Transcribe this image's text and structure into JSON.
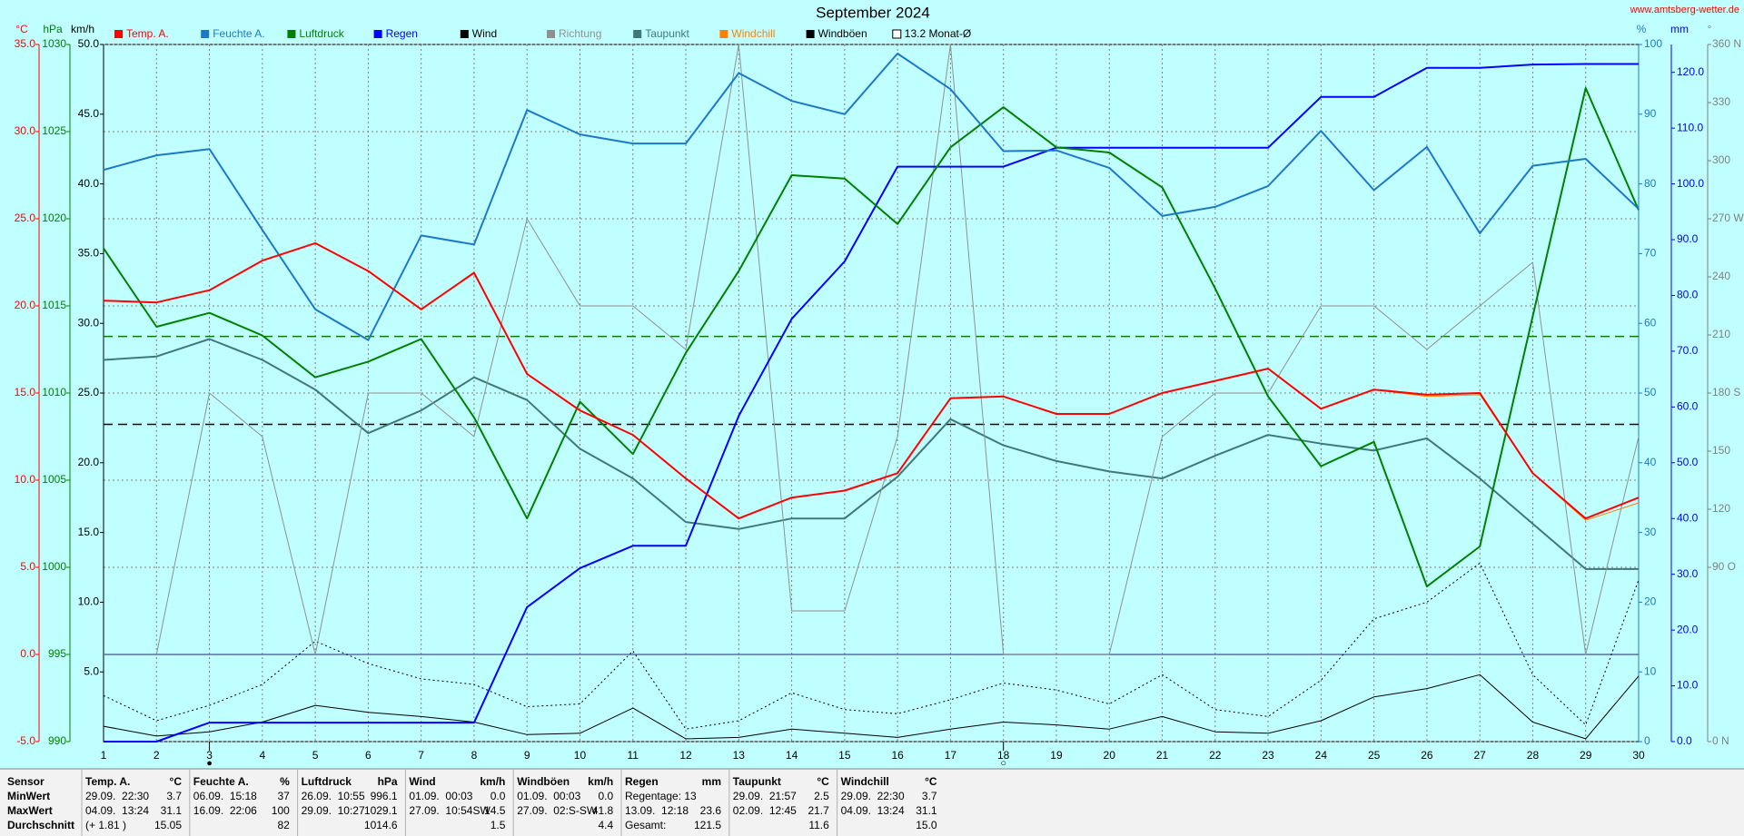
{
  "chart_data": {
    "type": "line",
    "title": "September 2024",
    "source": "www.amtsberg-wetter.de",
    "x": [
      1,
      2,
      3,
      4,
      5,
      6,
      7,
      8,
      9,
      10,
      11,
      12,
      13,
      14,
      15,
      16,
      17,
      18,
      19,
      20,
      21,
      22,
      23,
      24,
      25,
      26,
      27,
      28,
      29,
      30
    ],
    "xlim": [
      1,
      30
    ],
    "xticks": [
      1,
      2,
      3,
      4,
      5,
      6,
      7,
      8,
      9,
      10,
      11,
      12,
      13,
      14,
      15,
      16,
      17,
      18,
      19,
      20,
      21,
      22,
      23,
      24,
      25,
      26,
      27,
      28,
      29,
      30
    ],
    "grid": true,
    "zero_line": true,
    "axes": [
      {
        "unit": "°C",
        "color": "#ff0000",
        "lim": [
          -5,
          35
        ],
        "ticks": [
          {
            "value": -5,
            "label": "-5.0"
          },
          {
            "value": 0,
            "label": "0.0"
          },
          {
            "value": 5,
            "label": "5.0"
          },
          {
            "value": 10,
            "label": "10.0"
          },
          {
            "value": 15,
            "label": "15.0"
          },
          {
            "value": 20,
            "label": "20.0"
          },
          {
            "value": 25,
            "label": "25.0"
          },
          {
            "value": 30,
            "label": "30.0"
          },
          {
            "value": 35,
            "label": "35.0"
          }
        ]
      },
      {
        "unit": "hPa",
        "color": "#008000",
        "lim": [
          990,
          1030
        ],
        "ticks": [
          990,
          995,
          1000,
          1005,
          1010,
          1015,
          1020,
          1025,
          1030
        ]
      },
      {
        "unit": "km/h",
        "color": "#000000",
        "lim": [
          0,
          50
        ],
        "ticks": [
          {
            "value": 5,
            "label": "5.0"
          },
          {
            "value": 10,
            "label": "10.0"
          },
          {
            "value": 15,
            "label": "15.0"
          },
          {
            "value": 20,
            "label": "20.0"
          },
          {
            "value": 25,
            "label": "25.0"
          },
          {
            "value": 30,
            "label": "30.0"
          },
          {
            "value": 35,
            "label": "35.0"
          },
          {
            "value": 40,
            "label": "40.0"
          },
          {
            "value": 45,
            "label": "45.0"
          },
          {
            "value": 50,
            "label": "50.0"
          }
        ]
      },
      {
        "unit": "%",
        "color": "#1e78c8",
        "lim": [
          0,
          100
        ],
        "ticks": [
          0,
          10,
          20,
          30,
          40,
          50,
          60,
          70,
          80,
          90,
          100
        ]
      },
      {
        "unit": "mm",
        "color": "#0000ff",
        "lim": [
          0,
          125
        ],
        "ticks": [
          {
            "value": 0,
            "label": "0.0"
          },
          {
            "value": 10,
            "label": "10.0"
          },
          {
            "value": 20,
            "label": "20.0"
          },
          {
            "value": 30,
            "label": "30.0"
          },
          {
            "value": 40,
            "label": "40.0"
          },
          {
            "value": 50,
            "label": "50.0"
          },
          {
            "value": 60,
            "label": "60.0"
          },
          {
            "value": 70,
            "label": "70.0"
          },
          {
            "value": 80,
            "label": "80.0"
          },
          {
            "value": 90,
            "label": "90.0"
          },
          {
            "value": 100,
            "label": "100.0"
          },
          {
            "value": 110,
            "label": "110.0"
          },
          {
            "value": 120,
            "label": "120.0"
          }
        ]
      },
      {
        "unit": "°",
        "color": "#808080",
        "lim": [
          0,
          360
        ],
        "ticks": [
          {
            "value": 0,
            "label": "0 N"
          },
          {
            "value": 90,
            "label": "90 O"
          },
          120,
          150,
          {
            "value": 180,
            "label": "180 S"
          },
          210,
          240,
          {
            "value": 270,
            "label": "270 W"
          },
          300,
          330,
          {
            "value": 360,
            "label": "360 N"
          }
        ]
      }
    ],
    "series": [
      {
        "name": "Temp. A.",
        "color": "#ff0000",
        "axis": 0,
        "style": "thick",
        "values": [
          20.3,
          20.2,
          20.9,
          22.6,
          23.6,
          22.0,
          19.8,
          21.9,
          16.1,
          14.0,
          12.6,
          10.1,
          7.8,
          9.0,
          9.4,
          10.4,
          14.7,
          14.8,
          13.8,
          13.8,
          15.0,
          15.7,
          16.4,
          14.1,
          15.2,
          14.9,
          15.0,
          10.4,
          7.8,
          9.0
        ]
      },
      {
        "name": "Feuchte A.",
        "color": "#1e78c8",
        "axis": 3,
        "style": "thick",
        "values": [
          82.0,
          84.1,
          85.0,
          73.4,
          62.0,
          57.6,
          72.6,
          71.3,
          90.6,
          87.1,
          85.8,
          85.8,
          95.9,
          91.9,
          90.0,
          98.7,
          93.6,
          84.7,
          84.8,
          82.3,
          75.4,
          76.7,
          79.7,
          87.6,
          79.1,
          85.3,
          72.9,
          82.6,
          83.6,
          76.4
        ]
      },
      {
        "name": "Luftdruck",
        "color": "#008000",
        "axis": 1,
        "style": "thick",
        "values": [
          1018.3,
          1013.8,
          1014.6,
          1013.3,
          1010.9,
          1011.8,
          1013.1,
          1008.6,
          1002.8,
          1009.5,
          1006.5,
          1012.3,
          1017.0,
          1022.5,
          1022.3,
          1019.7,
          1024.1,
          1026.4,
          1024.1,
          1023.8,
          1021.8,
          1016.0,
          1009.8,
          1005.8,
          1007.2,
          998.9,
          1001.2,
          1014.4,
          1027.5,
          1020.5
        ]
      },
      {
        "name": "Regen",
        "color": "#0000ff",
        "axis": 4,
        "style": "thick",
        "values": [
          0,
          0,
          3.4,
          3.4,
          3.4,
          3.4,
          3.4,
          3.4,
          24.1,
          31.1,
          35.1,
          35.1,
          58.4,
          75.8,
          86.1,
          103.1,
          103.1,
          103.1,
          106.5,
          106.5,
          106.5,
          106.5,
          106.5,
          115.6,
          115.6,
          120.8,
          120.8,
          121.4,
          121.5,
          121.5
        ]
      },
      {
        "name": "Wind",
        "color": "#000000",
        "axis": 2,
        "style": "thin",
        "values": [
          1.1,
          0.4,
          0.7,
          1.4,
          2.6,
          2.1,
          1.8,
          1.4,
          0.5,
          0.6,
          2.4,
          0.2,
          0.3,
          0.9,
          0.6,
          0.3,
          0.9,
          1.4,
          1.2,
          0.9,
          1.8,
          0.7,
          0.6,
          1.5,
          3.2,
          3.8,
          4.8,
          1.4,
          0.2,
          4.7
        ]
      },
      {
        "name": "Richtung",
        "color": "#909090",
        "axis": 5,
        "style": "thin",
        "values": [
          null,
          45,
          180,
          157.5,
          45,
          180,
          180,
          157.5,
          270,
          225,
          225,
          202.5,
          360,
          67.5,
          67.5,
          157.5,
          360,
          45,
          45,
          45,
          157.5,
          180,
          180,
          225,
          225,
          202.5,
          225,
          247.5,
          45,
          157.5
        ]
      },
      {
        "name": "Taupunkt",
        "color": "#407878",
        "axis": 0,
        "style": "thick",
        "values": [
          16.9,
          17.1,
          18.1,
          16.9,
          15.2,
          12.7,
          14.0,
          15.9,
          14.6,
          11.8,
          10.1,
          7.6,
          7.2,
          7.8,
          7.8,
          10.2,
          13.5,
          12.0,
          11.1,
          10.5,
          10.1,
          11.4,
          12.6,
          12.1,
          11.7,
          12.4,
          10.1,
          7.5,
          4.9,
          4.9
        ]
      },
      {
        "name": "Windchill",
        "color": "#ff8000",
        "axis": 0,
        "style": "thin",
        "values": [
          20.3,
          20.2,
          20.9,
          22.6,
          23.6,
          22.0,
          19.8,
          21.9,
          16.1,
          14.0,
          12.6,
          10.1,
          7.8,
          9.0,
          9.4,
          10.4,
          14.7,
          14.8,
          13.8,
          13.8,
          15.0,
          15.7,
          16.4,
          14.1,
          15.2,
          14.8,
          14.9,
          10.4,
          7.7,
          8.7
        ]
      },
      {
        "name": "Windböen",
        "color": "#000000",
        "axis": 2,
        "style": "dotted",
        "values": [
          3.3,
          1.5,
          2.6,
          4.1,
          7.2,
          5.6,
          4.5,
          4.1,
          2.5,
          2.7,
          6.5,
          0.9,
          1.5,
          3.5,
          2.3,
          2.0,
          3.0,
          4.2,
          3.7,
          2.7,
          4.8,
          2.3,
          1.8,
          4.4,
          8.8,
          10.0,
          12.8,
          4.8,
          1.2,
          11.6
        ]
      }
    ],
    "reference_lines": [
      {
        "label": "13.2 Monat-Ø",
        "axis": 0,
        "value": 13.2,
        "color": "#000000"
      },
      {
        "axis": 1,
        "value": 1013.25,
        "color": "#008000"
      }
    ],
    "moon_phases": [
      {
        "x": 3,
        "symbol": "●"
      },
      {
        "x": 18,
        "symbol": "○"
      }
    ]
  },
  "stats_table": {
    "corner": "Sensor",
    "columns": [
      {
        "name": "Temp. A.",
        "unit": "°C"
      },
      {
        "name": "Feuchte A.",
        "unit": "%"
      },
      {
        "name": "Luftdruck",
        "unit": "hPa"
      },
      {
        "name": "Wind",
        "unit": "km/h"
      },
      {
        "name": "Windböen",
        "unit": "km/h"
      },
      {
        "name": "Regen",
        "unit": "mm"
      },
      {
        "name": "Taupunkt",
        "unit": "°C"
      },
      {
        "name": "Windchill",
        "unit": "°C"
      }
    ],
    "row_labels": [
      "MinWert",
      "MaxWert",
      "Durchschnitt"
    ],
    "cells": [
      [
        {
          "left": "29.09.  22:30",
          "right": "3.7"
        },
        {
          "left": "06.09.  15:18",
          "right": "37"
        },
        {
          "left": "26.09.  10:55",
          "right": "996.1"
        },
        {
          "left": "01.09.  00:03",
          "right": "0.0"
        },
        {
          "left": "01.09.  00:03",
          "right": "0.0"
        },
        {
          "left": "Regentage: 13"
        },
        {
          "left": "29.09.  21:57",
          "right": "2.5"
        },
        {
          "left": "29.09.  22:30",
          "right": "3.7"
        }
      ],
      [
        {
          "left": "04.09.  13:24",
          "right": "31.1"
        },
        {
          "left": "16.09.  22:06",
          "right": "100"
        },
        {
          "left": "29.09.  10:27",
          "right": "1029.1"
        },
        {
          "left": "27.09.  10:54SW",
          "right": "14.5"
        },
        {
          "left": "27.09.  02:S-SW",
          "right": "41.8"
        },
        {
          "left": "13.09.  12:18",
          "right": "23.6"
        },
        {
          "left": "02.09.  12:45",
          "right": "21.7"
        },
        {
          "left": "04.09.  13:24",
          "right": "31.1"
        }
      ],
      [
        {
          "left": "(+ 1.81 )",
          "right": "15.05"
        },
        {
          "right": "82"
        },
        {
          "right": "1014.6"
        },
        {
          "right": "1.5"
        },
        {
          "right": "4.4"
        },
        {
          "left": "Gesamt:",
          "right": "121.5"
        },
        {
          "right": "11.6"
        },
        {
          "right": "15.0"
        }
      ]
    ]
  }
}
